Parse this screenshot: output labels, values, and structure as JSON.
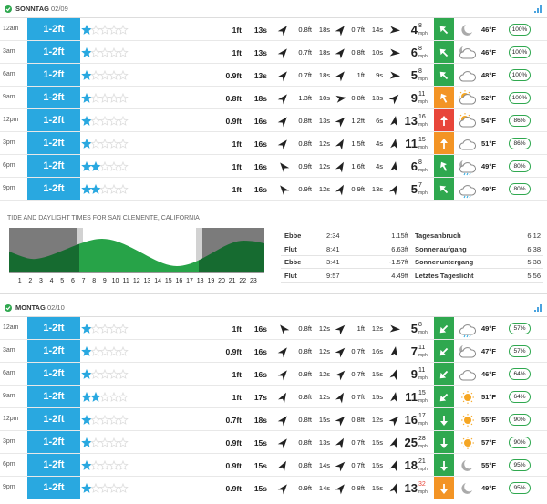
{
  "days": [
    {
      "name": "SONNTAG",
      "date": "02/09",
      "rows": [
        {
          "time": "12am",
          "surf": "1-2ft",
          "rating": 1,
          "swells": [
            [
              "1ft",
              "13s"
            ],
            [
              "0.8ft",
              "18s"
            ],
            [
              "0.7ft",
              "14s"
            ]
          ],
          "wind": "4",
          "gust": "8",
          "wind_color": "#2fa84f",
          "weather": "moon",
          "temp": "46°F",
          "prob": "100%",
          "dirs": [
            40,
            40,
            95,
            315
          ]
        },
        {
          "time": "3am",
          "surf": "1-2ft",
          "rating": 1,
          "swells": [
            [
              "1ft",
              "13s"
            ],
            [
              "0.7ft",
              "18s"
            ],
            [
              "0.8ft",
              "10s"
            ]
          ],
          "wind": "6",
          "gust": "8",
          "wind_color": "#2fa84f",
          "weather": "cloud-moon",
          "temp": "46°F",
          "prob": "100%",
          "dirs": [
            40,
            40,
            95,
            315
          ]
        },
        {
          "time": "6am",
          "surf": "1-2ft",
          "rating": 1,
          "swells": [
            [
              "0.9ft",
              "13s"
            ],
            [
              "0.7ft",
              "18s"
            ],
            [
              "1ft",
              "9s"
            ]
          ],
          "wind": "5",
          "gust": "8",
          "wind_color": "#2fa84f",
          "weather": "cloud",
          "temp": "48°F",
          "prob": "100%",
          "dirs": [
            40,
            40,
            95,
            315
          ]
        },
        {
          "time": "9am",
          "surf": "1-2ft",
          "rating": 1,
          "swells": [
            [
              "0.8ft",
              "18s"
            ],
            [
              "1.3ft",
              "10s"
            ],
            [
              "0.8ft",
              "13s"
            ]
          ],
          "wind": "9",
          "gust": "11",
          "wind_color": "#f39425",
          "weather": "sun-cloud",
          "temp": "52°F",
          "prob": "100%",
          "dirs": [
            40,
            80,
            45,
            330
          ]
        },
        {
          "time": "12pm",
          "surf": "1-2ft",
          "rating": 1,
          "swells": [
            [
              "0.9ft",
              "16s"
            ],
            [
              "0.8ft",
              "13s"
            ],
            [
              "1.2ft",
              "6s"
            ]
          ],
          "wind": "13",
          "gust": "16",
          "wind_color": "#e8463a",
          "weather": "sun-cloud",
          "temp": "54°F",
          "prob": "86%",
          "dirs": [
            40,
            45,
            10,
            0
          ]
        },
        {
          "time": "3pm",
          "surf": "1-2ft",
          "rating": 1,
          "swells": [
            [
              "1ft",
              "16s"
            ],
            [
              "0.8ft",
              "12s"
            ],
            [
              "1.5ft",
              "4s"
            ]
          ],
          "wind": "11",
          "gust": "15",
          "wind_color": "#f39425",
          "weather": "cloud",
          "temp": "51°F",
          "prob": "86%",
          "dirs": [
            40,
            30,
            10,
            0
          ]
        },
        {
          "time": "6pm",
          "surf": "1-2ft",
          "rating": 2,
          "swells": [
            [
              "1ft",
              "16s"
            ],
            [
              "0.9ft",
              "12s"
            ],
            [
              "1.6ft",
              "4s"
            ]
          ],
          "wind": "6",
          "gust": "8",
          "wind_color": "#2fa84f",
          "weather": "cloud-rain-moon",
          "temp": "49°F",
          "prob": "80%",
          "dirs": [
            320,
            30,
            10,
            330
          ]
        },
        {
          "time": "9pm",
          "surf": "1-2ft",
          "rating": 2,
          "swells": [
            [
              "1ft",
              "16s"
            ],
            [
              "0.9ft",
              "12s"
            ],
            [
              "0.9ft",
              "13s"
            ]
          ],
          "wind": "5",
          "gust": "7",
          "wind_color": "#2fa84f",
          "weather": "cloud-rain",
          "temp": "49°F",
          "prob": "80%",
          "dirs": [
            320,
            30,
            30,
            315
          ]
        }
      ]
    },
    {
      "name": "MONTAG",
      "date": "02/10",
      "rows": [
        {
          "time": "12am",
          "surf": "1-2ft",
          "rating": 1,
          "swells": [
            [
              "1ft",
              "16s"
            ],
            [
              "0.8ft",
              "12s"
            ],
            [
              "1ft",
              "12s"
            ]
          ],
          "wind": "5",
          "gust": "8",
          "wind_color": "#2fa84f",
          "weather": "cloud-rain",
          "temp": "49°F",
          "prob": "57%",
          "dirs": [
            320,
            45,
            95,
            225
          ]
        },
        {
          "time": "3am",
          "surf": "1-2ft",
          "rating": 1,
          "swells": [
            [
              "0.9ft",
              "16s"
            ],
            [
              "0.8ft",
              "12s"
            ],
            [
              "0.7ft",
              "16s"
            ]
          ],
          "wind": "7",
          "gust": "11",
          "wind_color": "#2fa84f",
          "weather": "cloud-moon",
          "temp": "47°F",
          "prob": "57%",
          "dirs": [
            40,
            45,
            10,
            225
          ]
        },
        {
          "time": "6am",
          "surf": "1-2ft",
          "rating": 1,
          "swells": [
            [
              "1ft",
              "16s"
            ],
            [
              "0.8ft",
              "12s"
            ],
            [
              "0.7ft",
              "15s"
            ]
          ],
          "wind": "9",
          "gust": "11",
          "wind_color": "#2fa84f",
          "weather": "cloud",
          "temp": "46°F",
          "prob": "64%",
          "dirs": [
            40,
            45,
            20,
            225
          ]
        },
        {
          "time": "9am",
          "surf": "1-2ft",
          "rating": 2,
          "swells": [
            [
              "1ft",
              "17s"
            ],
            [
              "0.8ft",
              "12s"
            ],
            [
              "0.7ft",
              "15s"
            ]
          ],
          "wind": "11",
          "gust": "15",
          "wind_color": "#2fa84f",
          "weather": "sun",
          "temp": "51°F",
          "prob": "64%",
          "dirs": [
            30,
            30,
            10,
            225
          ]
        },
        {
          "time": "12pm",
          "surf": "1-2ft",
          "rating": 1,
          "swells": [
            [
              "0.7ft",
              "18s"
            ],
            [
              "0.8ft",
              "15s"
            ],
            [
              "0.8ft",
              "12s"
            ]
          ],
          "wind": "16",
          "gust": "17",
          "wind_color": "#2fa84f",
          "weather": "sun",
          "temp": "55°F",
          "prob": "90%",
          "dirs": [
            40,
            45,
            45,
            180
          ]
        },
        {
          "time": "3pm",
          "surf": "1-2ft",
          "rating": 1,
          "swells": [
            [
              "0.9ft",
              "15s"
            ],
            [
              "0.8ft",
              "13s"
            ],
            [
              "0.7ft",
              "15s"
            ]
          ],
          "wind": "25",
          "gust": "28",
          "wind_color": "#2fa84f",
          "weather": "sun",
          "temp": "57°F",
          "prob": "90%",
          "dirs": [
            40,
            30,
            20,
            180
          ]
        },
        {
          "time": "6pm",
          "surf": "1-2ft",
          "rating": 1,
          "swells": [
            [
              "0.9ft",
              "15s"
            ],
            [
              "0.8ft",
              "14s"
            ],
            [
              "0.7ft",
              "15s"
            ]
          ],
          "wind": "18",
          "gust": "21",
          "wind_color": "#2fa84f",
          "weather": "moon",
          "temp": "55°F",
          "prob": "95%",
          "dirs": [
            30,
            45,
            20,
            180
          ]
        },
        {
          "time": "9pm",
          "surf": "1-2ft",
          "rating": 1,
          "swells": [
            [
              "0.9ft",
              "15s"
            ],
            [
              "0.9ft",
              "14s"
            ],
            [
              "0.8ft",
              "15s"
            ]
          ],
          "wind": "13",
          "gust": "32",
          "gust_color": "#e8463a",
          "wind_color": "#f39425",
          "weather": "moon",
          "temp": "49°F",
          "prob": "95%",
          "dirs": [
            40,
            40,
            20,
            180
          ]
        }
      ]
    }
  ],
  "max_rating": 5,
  "wind_unit": "mph",
  "tide": {
    "title": "TIDE AND DAYLIGHT TIMES FOR SAN CLEMENTE, CALIFORNIA",
    "hours": [
      1,
      2,
      3,
      4,
      5,
      6,
      7,
      8,
      9,
      10,
      11,
      12,
      13,
      14,
      15,
      16,
      17,
      18,
      19,
      20,
      21,
      22,
      23
    ],
    "table": [
      [
        "Ebbe",
        "2:34",
        "1.15ft",
        "Tagesanbruch",
        "6:12"
      ],
      [
        "Flut",
        "8:41",
        "6.63ft",
        "Sonnenaufgang",
        "6:38"
      ],
      [
        "Ebbe",
        "3:41",
        "-1.57ft",
        "Sonnenuntergang",
        "5:38"
      ],
      [
        "Flut",
        "9:57",
        "4.49ft",
        "Letztes Tageslicht",
        "5:56"
      ]
    ]
  }
}
